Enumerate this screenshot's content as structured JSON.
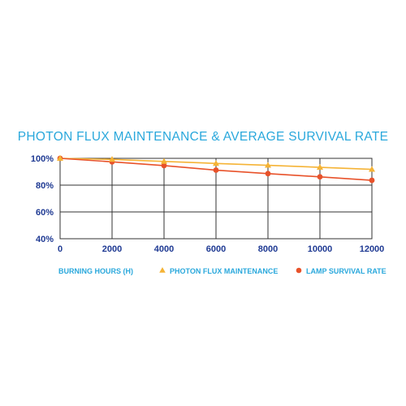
{
  "chart_data": {
    "type": "line",
    "title": "PHOTON FLUX MAINTENANCE & AVERAGE SURVIVAL RATE",
    "xlabel": "BURNING HOURS (H)",
    "ylabel": "",
    "x": [
      0,
      2000,
      4000,
      6000,
      8000,
      10000,
      12000
    ],
    "x_tick_labels": [
      "0",
      "2000",
      "4000",
      "6000",
      "8000",
      "10000",
      "12000"
    ],
    "y_tick_values": [
      40,
      60,
      80,
      100
    ],
    "y_tick_labels": [
      "40%",
      "60%",
      "80%",
      "100%"
    ],
    "xlim": [
      0,
      12000
    ],
    "ylim": [
      40,
      100
    ],
    "grid": true,
    "legend_position": "bottom-right",
    "series": [
      {
        "name": "PHOTON FLUX MAINTENANCE",
        "marker": "triangle",
        "color": "#f5b335",
        "values": [
          100,
          99.2,
          97.7,
          96.2,
          94.8,
          93.3,
          91.8
        ]
      },
      {
        "name": "LAMP SURVIVAL RATE",
        "marker": "circle",
        "color": "#e8522a",
        "values": [
          100,
          97.4,
          94.6,
          91.2,
          88.6,
          86.2,
          83.6
        ]
      }
    ]
  }
}
